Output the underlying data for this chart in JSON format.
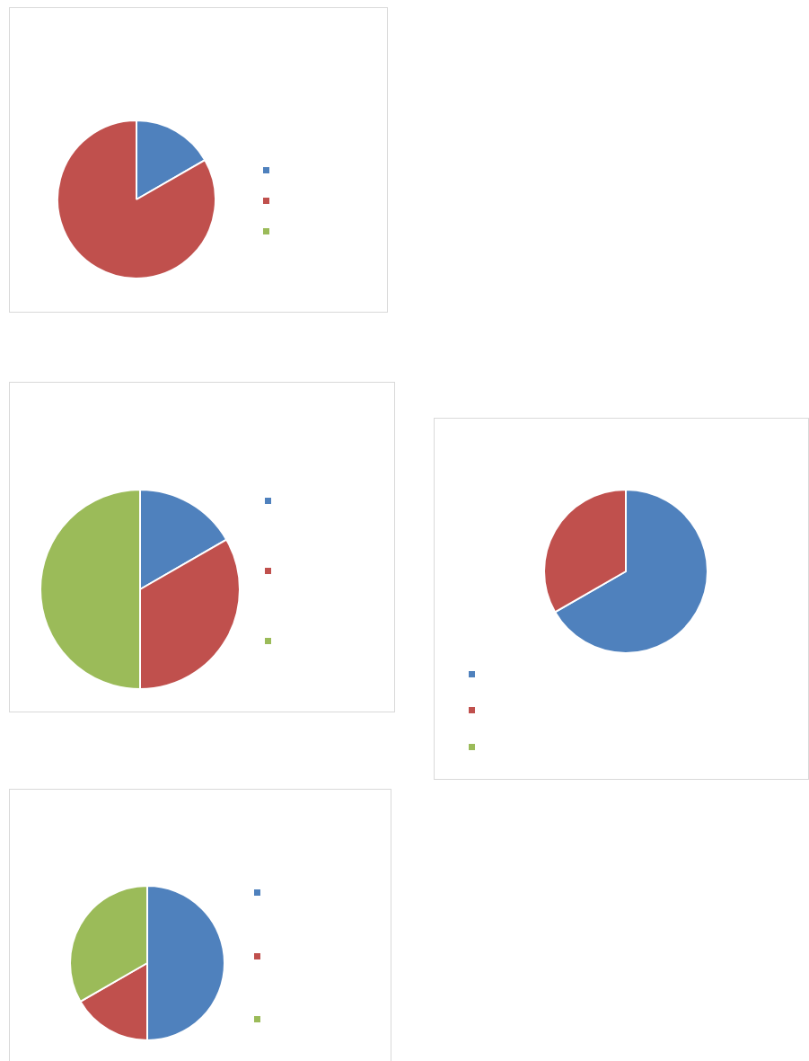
{
  "chart_data": [
    {
      "type": "pie",
      "categories": [
        null,
        null,
        null
      ],
      "values": [
        16.7,
        83.3,
        0
      ],
      "colors": [
        "#4f81bd",
        "#c0504d",
        "#9bbb59"
      ]
    },
    {
      "type": "pie",
      "categories": [
        null,
        null,
        null
      ],
      "values": [
        16.7,
        33.3,
        50
      ],
      "colors": [
        "#4f81bd",
        "#c0504d",
        "#9bbb59"
      ]
    },
    {
      "type": "pie",
      "categories": [
        null,
        null,
        null
      ],
      "values": [
        66.7,
        33.3,
        0
      ],
      "colors": [
        "#4f81bd",
        "#c0504d",
        "#9bbb59"
      ]
    },
    {
      "type": "pie",
      "categories": [
        null,
        null,
        null
      ],
      "values": [
        50,
        16.7,
        33.3
      ],
      "colors": [
        "#4f81bd",
        "#c0504d",
        "#9bbb59"
      ]
    }
  ]
}
